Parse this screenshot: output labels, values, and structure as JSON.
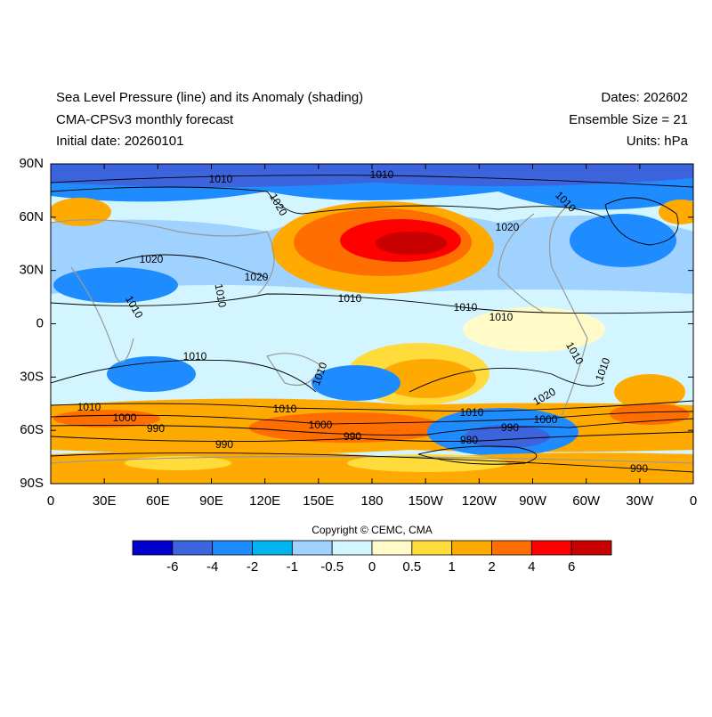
{
  "header": {
    "left": [
      "Sea Level Pressure (line) and its Anomaly (shading)",
      "CMA-CPSv3 monthly forecast",
      "Initial date: 20260101"
    ],
    "right": [
      "Dates: 202602",
      "Ensemble Size = 21",
      "Units: hPa"
    ]
  },
  "map": {
    "lat_labels": [
      "90N",
      "60N",
      "30N",
      "0",
      "30S",
      "60S",
      "90S"
    ],
    "lon_labels": [
      "0",
      "30E",
      "60E",
      "90E",
      "120E",
      "150E",
      "180",
      "150W",
      "120W",
      "90W",
      "60W",
      "30W",
      "0"
    ],
    "contour_labels": [
      "1010",
      "1010",
      "1020",
      "1010",
      "1020",
      "1020",
      "1020",
      "1010",
      "1010",
      "1010",
      "1010",
      "1010",
      "1010",
      "1010",
      "1010",
      "1010",
      "1020",
      "1010",
      "1010",
      "1010",
      "1000",
      "1000",
      "1000",
      "990",
      "990",
      "990",
      "980",
      "990",
      "990"
    ]
  },
  "copyright": "Copyright © CEMC, CMA",
  "colorbar": {
    "colors": [
      "#0000cd",
      "#3c64dc",
      "#1e8cff",
      "#00b4f0",
      "#a0d2ff",
      "#d2f5ff",
      "#fffac8",
      "#ffdc3c",
      "#ffaa00",
      "#ff6e00",
      "#ff0000",
      "#c80000"
    ],
    "labels": [
      "-6",
      "-4",
      "-2",
      "-1",
      "-0.5",
      "0",
      "0.5",
      "1",
      "2",
      "4",
      "6"
    ]
  }
}
